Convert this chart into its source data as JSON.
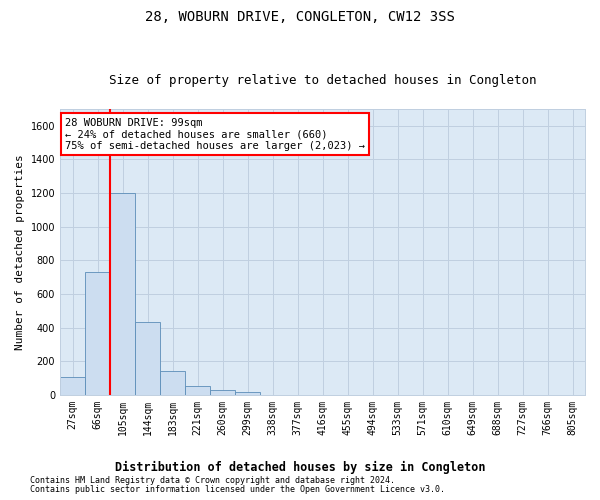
{
  "title": "28, WOBURN DRIVE, CONGLETON, CW12 3SS",
  "subtitle": "Size of property relative to detached houses in Congleton",
  "xlabel": "Distribution of detached houses by size in Congleton",
  "ylabel": "Number of detached properties",
  "bar_labels": [
    "27sqm",
    "66sqm",
    "105sqm",
    "144sqm",
    "183sqm",
    "221sqm",
    "260sqm",
    "299sqm",
    "338sqm",
    "377sqm",
    "416sqm",
    "455sqm",
    "494sqm",
    "533sqm",
    "571sqm",
    "610sqm",
    "649sqm",
    "688sqm",
    "727sqm",
    "766sqm",
    "805sqm"
  ],
  "bar_values": [
    105,
    730,
    1200,
    435,
    145,
    50,
    28,
    20,
    0,
    0,
    0,
    0,
    0,
    0,
    0,
    0,
    0,
    0,
    0,
    0,
    0
  ],
  "ylim": [
    0,
    1700
  ],
  "yticks": [
    0,
    200,
    400,
    600,
    800,
    1000,
    1200,
    1400,
    1600
  ],
  "bar_color": "#ccddf0",
  "bar_edge_color": "#5b8db8",
  "property_label": "28 WOBURN DRIVE: 99sqm",
  "annotation_line1": "← 24% of detached houses are smaller (660)",
  "annotation_line2": "75% of semi-detached houses are larger (2,023) →",
  "red_line_x": 1.5,
  "footer_line1": "Contains HM Land Registry data © Crown copyright and database right 2024.",
  "footer_line2": "Contains public sector information licensed under the Open Government Licence v3.0.",
  "bg_color": "#ffffff",
  "plot_bg_color": "#dce9f5",
  "grid_color": "#c0cfe0",
  "title_fontsize": 10,
  "subtitle_fontsize": 9,
  "axis_label_fontsize": 8.5,
  "tick_fontsize": 7,
  "footer_fontsize": 6,
  "ylabel_fontsize": 8
}
